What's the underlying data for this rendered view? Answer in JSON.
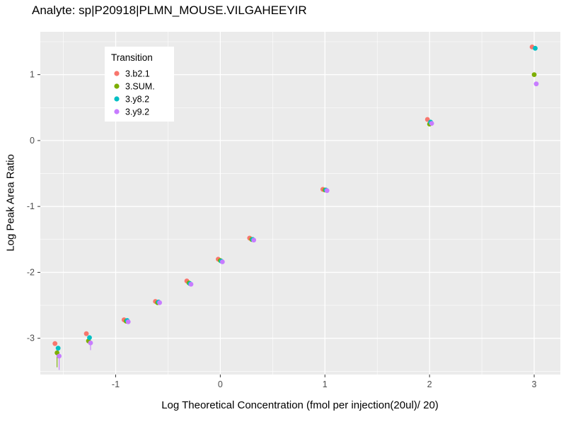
{
  "chart_data": {
    "type": "scatter",
    "title": "Analyte: sp|P20918|PLMN_MOUSE.VILGAHEEYIR",
    "xlabel": "Log Theoretical Concentration (fmol per injection(20ul)/ 20)",
    "ylabel": "Log Peak Area Ratio",
    "legend_title": "Transition",
    "legend_position": "inside-top-left",
    "grid": true,
    "panel_bg": "#EBEBEB",
    "grid_color": "#FFFFFF",
    "tick_label_color": "#4D4D4D",
    "xlim": [
      -1.72,
      3.25
    ],
    "ylim": [
      -3.55,
      1.65
    ],
    "x_ticks": [
      -1,
      0,
      1,
      2,
      3
    ],
    "y_ticks": [
      -3,
      -2,
      -1,
      0,
      1
    ],
    "x_minor": [
      -1.5,
      -0.5,
      0.5,
      1.5,
      2.5
    ],
    "y_minor": [
      -3.5,
      -2.5,
      -1.5,
      -0.5,
      0.5,
      1.5
    ],
    "x": [
      -1.56,
      -1.26,
      -0.9,
      -0.6,
      -0.3,
      0,
      0.3,
      1,
      2,
      3
    ],
    "series": [
      {
        "name": "3.b2.1",
        "color": "#F8766D",
        "x_offset": -0.02,
        "y": [
          -3.08,
          -2.93,
          -2.72,
          -2.44,
          -2.13,
          -1.8,
          -1.48,
          -0.74,
          0.32,
          1.42
        ]
      },
      {
        "name": "3.SUM.",
        "color": "#7CAE00",
        "x_offset": 0.0,
        "y": [
          -3.22,
          -3.04,
          -2.74,
          -2.46,
          -2.16,
          -1.82,
          -1.5,
          -0.75,
          0.25,
          1.0
        ]
      },
      {
        "name": "3.y8.2",
        "color": "#00BFC4",
        "x_offset": 0.01,
        "y": [
          -3.15,
          -2.99,
          -2.73,
          -2.45,
          -2.17,
          -1.83,
          -1.5,
          -0.75,
          0.28,
          1.4
        ]
      },
      {
        "name": "3.y9.2",
        "color": "#C77CFF",
        "x_offset": 0.02,
        "y": [
          -3.27,
          -3.07,
          -2.75,
          -2.46,
          -2.18,
          -1.84,
          -1.51,
          -0.76,
          0.26,
          0.86
        ]
      }
    ],
    "error_bars": [
      {
        "series": 1,
        "x": -1.56,
        "y0": -3.44,
        "y1": -3.22
      },
      {
        "series": 2,
        "x": -1.56,
        "y0": -3.3,
        "y1": -3.15
      },
      {
        "series": 3,
        "x": -1.56,
        "y0": -3.48,
        "y1": -3.27
      },
      {
        "series": 3,
        "x": -1.26,
        "y0": -3.18,
        "y1": -3.07
      }
    ]
  }
}
